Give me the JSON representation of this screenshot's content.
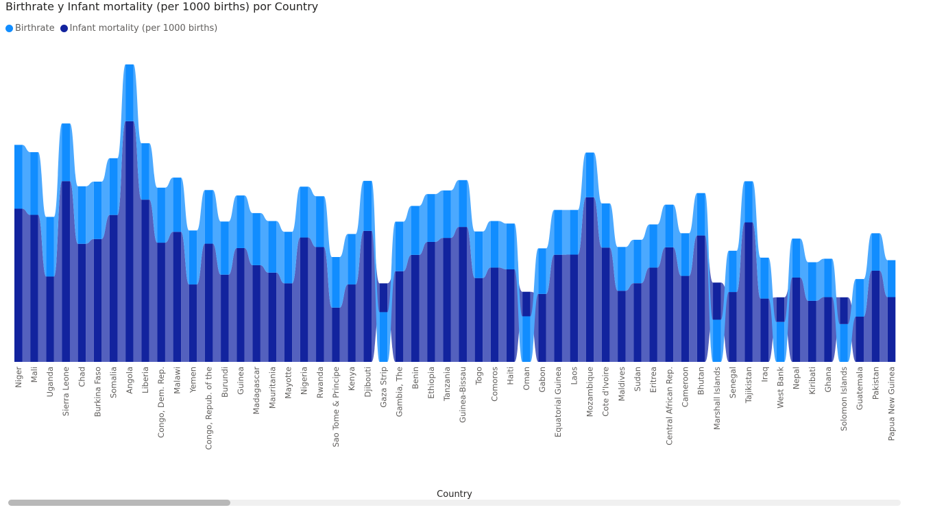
{
  "chart_data": {
    "type": "bar",
    "title": "Birthrate y Infant mortality (per 1000 births) por Country",
    "xlabel": "Country",
    "ylabel": "",
    "stacked": true,
    "ribbon": true,
    "legend": "top-left",
    "categories": [
      "Niger",
      "Mali",
      "Uganda",
      "Sierra Leone",
      "Chad",
      "Burkina Faso",
      "Somalia",
      "Angola",
      "Liberia",
      "Congo, Dem. Rep.",
      "Malawi",
      "Yemen",
      "Congo, Repub. of the",
      "Burundi",
      "Guinea",
      "Madagascar",
      "Mauritania",
      "Mayotte",
      "Nigeria",
      "Rwanda",
      "Sao Tome & Principe",
      "Kenya",
      "Djibouti",
      "Gaza Strip",
      "Gambia, The",
      "Benin",
      "Ethiopia",
      "Tanzania",
      "Guinea-Bissau",
      "Togo",
      "Comoros",
      "Haiti",
      "Oman",
      "Gabon",
      "Equatorial Guinea",
      "Laos",
      "Mozambique",
      "Cote d'Ivoire",
      "Maldives",
      "Sudan",
      "Eritrea",
      "Central African Rep.",
      "Cameroon",
      "Bhutan",
      "Marshall Islands",
      "Senegal",
      "Tajikistan",
      "Iraq",
      "West Bank",
      "Nepal",
      "Kiribati",
      "Ghana",
      "Solomon Islands",
      "Guatemala",
      "Pakistan",
      "Papua New Guinea"
    ],
    "series": [
      {
        "name": "Birthrate",
        "color": "#118DFF",
        "values": [
          50.7,
          49.8,
          47.4,
          45.8,
          45.7,
          45.6,
          45.1,
          45.1,
          44.8,
          43.7,
          43.1,
          42.9,
          42.6,
          42.2,
          41.8,
          41.4,
          40.99,
          40.95,
          40.4,
          40.4,
          40.2,
          40.1,
          39.7,
          39.5,
          39.4,
          38.9,
          38.0,
          37.7,
          37.2,
          37.0,
          37.0,
          36.4,
          36.2,
          36.2,
          35.6,
          35.5,
          35.5,
          35.1,
          34.8,
          34.5,
          34.3,
          33.9,
          33.9,
          33.7,
          33.5,
          32.8,
          32.7,
          32.5,
          31.7,
          30.98,
          30.65,
          30.52,
          30.01,
          29.88,
          29.74,
          29.36
        ]
      },
      {
        "name": "Infant mortality (per 1000 births)",
        "color": "#12239E",
        "values": [
          121.7,
          116.8,
          67.8,
          143.6,
          93.8,
          97.6,
          116.7,
          191.2,
          128.9,
          94.7,
          103.3,
          61.5,
          93.9,
          69.3,
          90.4,
          76.8,
          70.9,
          62.4,
          98.8,
          91.2,
          43.1,
          61.5,
          104.1,
          22.9,
          72.0,
          85.0,
          95.3,
          98.5,
          107.2,
          66.6,
          74.9,
          73.5,
          19.5,
          54.0,
          85.1,
          85.2,
          130.8,
          90.8,
          56.5,
          62.5,
          74.9,
          91.0,
          68.3,
          100.4,
          29.5,
          55.5,
          110.8,
          50.3,
          19.6,
          66.98,
          48.52,
          51.43,
          21.29,
          35.93,
          72.44,
          51.45
        ]
      }
    ],
    "colors": {
      "birthrate_fill": "#4BA9FF",
      "mortality_fill": "#5461BE",
      "scrollbar": "#b8b8b8"
    }
  }
}
